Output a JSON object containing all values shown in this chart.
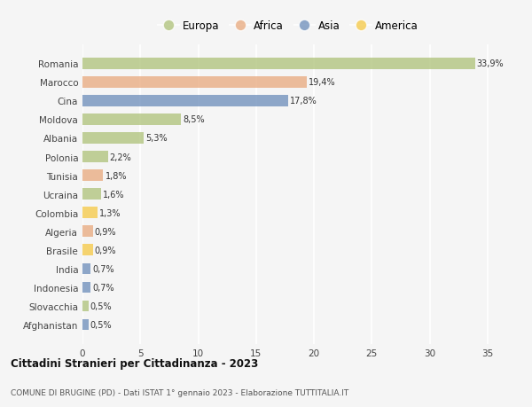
{
  "countries": [
    "Romania",
    "Marocco",
    "Cina",
    "Moldova",
    "Albania",
    "Polonia",
    "Tunisia",
    "Ucraina",
    "Colombia",
    "Algeria",
    "Brasile",
    "India",
    "Indonesia",
    "Slovacchia",
    "Afghanistan"
  ],
  "values": [
    33.9,
    19.4,
    17.8,
    8.5,
    5.3,
    2.2,
    1.8,
    1.6,
    1.3,
    0.9,
    0.9,
    0.7,
    0.7,
    0.5,
    0.5
  ],
  "labels": [
    "33,9%",
    "19,4%",
    "17,8%",
    "8,5%",
    "5,3%",
    "2,2%",
    "1,8%",
    "1,6%",
    "1,3%",
    "0,9%",
    "0,9%",
    "0,7%",
    "0,7%",
    "0,5%",
    "0,5%"
  ],
  "continents": [
    "Europa",
    "Africa",
    "Asia",
    "Europa",
    "Europa",
    "Europa",
    "Africa",
    "Europa",
    "America",
    "Africa",
    "America",
    "Asia",
    "Asia",
    "Europa",
    "Asia"
  ],
  "continent_colors": {
    "Europa": "#adc178",
    "Africa": "#e8a87c",
    "Asia": "#6b8cba",
    "America": "#f5c842"
  },
  "legend_order": [
    "Europa",
    "Africa",
    "Asia",
    "America"
  ],
  "title": "Cittadini Stranieri per Cittadinanza - 2023",
  "subtitle": "COMUNE DI BRUGINE (PD) - Dati ISTAT 1° gennaio 2023 - Elaborazione TUTTITALIA.IT",
  "xlim": [
    0,
    37
  ],
  "xticks": [
    0,
    5,
    10,
    15,
    20,
    25,
    30,
    35
  ],
  "background_color": "#f5f5f5",
  "grid_color": "#ffffff",
  "bar_alpha": 0.75
}
